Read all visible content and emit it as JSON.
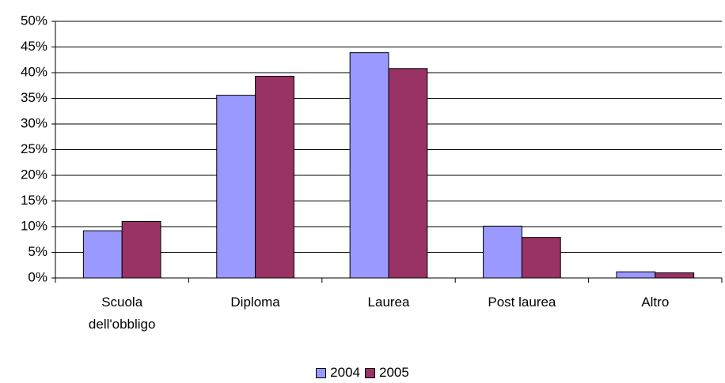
{
  "chart_data": {
    "type": "bar",
    "categories": [
      "Scuola dell'obbligo",
      "Diploma",
      "Laurea",
      "Post laurea",
      "Altro"
    ],
    "series": [
      {
        "name": "2004",
        "color": "#9999ff",
        "values": [
          9.2,
          35.6,
          43.9,
          10.1,
          1.2
        ]
      },
      {
        "name": "2005",
        "color": "#993366",
        "values": [
          11.0,
          39.3,
          40.8,
          7.9,
          1.0
        ]
      }
    ],
    "ylim": [
      0,
      50
    ],
    "yticks": [
      {
        "value": 0,
        "label": "0%"
      },
      {
        "value": 5,
        "label": "5%"
      },
      {
        "value": 10,
        "label": "10%"
      },
      {
        "value": 15,
        "label": "15%"
      },
      {
        "value": 20,
        "label": "20%"
      },
      {
        "value": 25,
        "label": "25%"
      },
      {
        "value": 30,
        "label": "30%"
      },
      {
        "value": 35,
        "label": "35%"
      },
      {
        "value": 40,
        "label": "40%"
      },
      {
        "value": 45,
        "label": "45%"
      },
      {
        "value": 50,
        "label": "50%"
      }
    ],
    "grid": true,
    "legend": "bottom"
  }
}
